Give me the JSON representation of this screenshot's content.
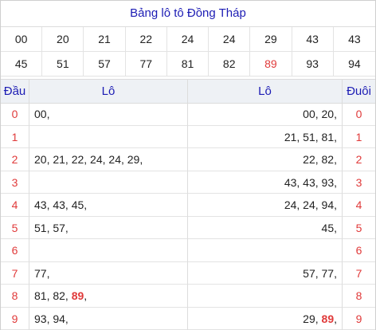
{
  "title": "Bảng lô tô Đồng Tháp",
  "numbers": [
    {
      "v": "00",
      "hl": false
    },
    {
      "v": "20",
      "hl": false
    },
    {
      "v": "21",
      "hl": false
    },
    {
      "v": "22",
      "hl": false
    },
    {
      "v": "24",
      "hl": false
    },
    {
      "v": "24",
      "hl": false
    },
    {
      "v": "29",
      "hl": false
    },
    {
      "v": "43",
      "hl": false
    },
    {
      "v": "43",
      "hl": false
    },
    {
      "v": "45",
      "hl": false
    },
    {
      "v": "51",
      "hl": false
    },
    {
      "v": "57",
      "hl": false
    },
    {
      "v": "77",
      "hl": false
    },
    {
      "v": "81",
      "hl": false
    },
    {
      "v": "82",
      "hl": false
    },
    {
      "v": "89",
      "hl": true
    },
    {
      "v": "93",
      "hl": false
    },
    {
      "v": "94",
      "hl": false
    }
  ],
  "headers": {
    "dau": "Đầu",
    "lo_left": "Lô",
    "lo_right": "Lô",
    "duoi": "Đuôi"
  },
  "rows": [
    {
      "dau": "0",
      "left": [
        {
          "t": "00,",
          "hl": false
        }
      ],
      "right": [
        {
          "t": "00, 20,",
          "hl": false
        }
      ],
      "duoi": "0"
    },
    {
      "dau": "1",
      "left": [],
      "right": [
        {
          "t": "21, 51, 81,",
          "hl": false
        }
      ],
      "duoi": "1"
    },
    {
      "dau": "2",
      "left": [
        {
          "t": "20, 21, 22, 24, 24, 29,",
          "hl": false
        }
      ],
      "right": [
        {
          "t": "22, 82,",
          "hl": false
        }
      ],
      "duoi": "2"
    },
    {
      "dau": "3",
      "left": [],
      "right": [
        {
          "t": "43, 43, 93,",
          "hl": false
        }
      ],
      "duoi": "3"
    },
    {
      "dau": "4",
      "left": [
        {
          "t": "43, 43, 45,",
          "hl": false
        }
      ],
      "right": [
        {
          "t": "24, 24, 94,",
          "hl": false
        }
      ],
      "duoi": "4"
    },
    {
      "dau": "5",
      "left": [
        {
          "t": "51, 57,",
          "hl": false
        }
      ],
      "right": [
        {
          "t": "45,",
          "hl": false
        }
      ],
      "duoi": "5"
    },
    {
      "dau": "6",
      "left": [],
      "right": [],
      "duoi": "6"
    },
    {
      "dau": "7",
      "left": [
        {
          "t": "77,",
          "hl": false
        }
      ],
      "right": [
        {
          "t": "57, 77,",
          "hl": false
        }
      ],
      "duoi": "7"
    },
    {
      "dau": "8",
      "left": [
        {
          "t": "81, 82, ",
          "hl": false
        },
        {
          "t": "89",
          "hl": true
        },
        {
          "t": ",",
          "hl": false
        }
      ],
      "right": [],
      "duoi": "8"
    },
    {
      "dau": "9",
      "left": [
        {
          "t": "93, 94,",
          "hl": false
        }
      ],
      "right": [
        {
          "t": "29, ",
          "hl": false
        },
        {
          "t": "89",
          "hl": true
        },
        {
          "t": ",",
          "hl": false
        }
      ],
      "duoi": "9"
    }
  ],
  "colors": {
    "title": "#1c1cb4",
    "highlight": "#e03a3a",
    "header_bg": "#eef1f5"
  }
}
